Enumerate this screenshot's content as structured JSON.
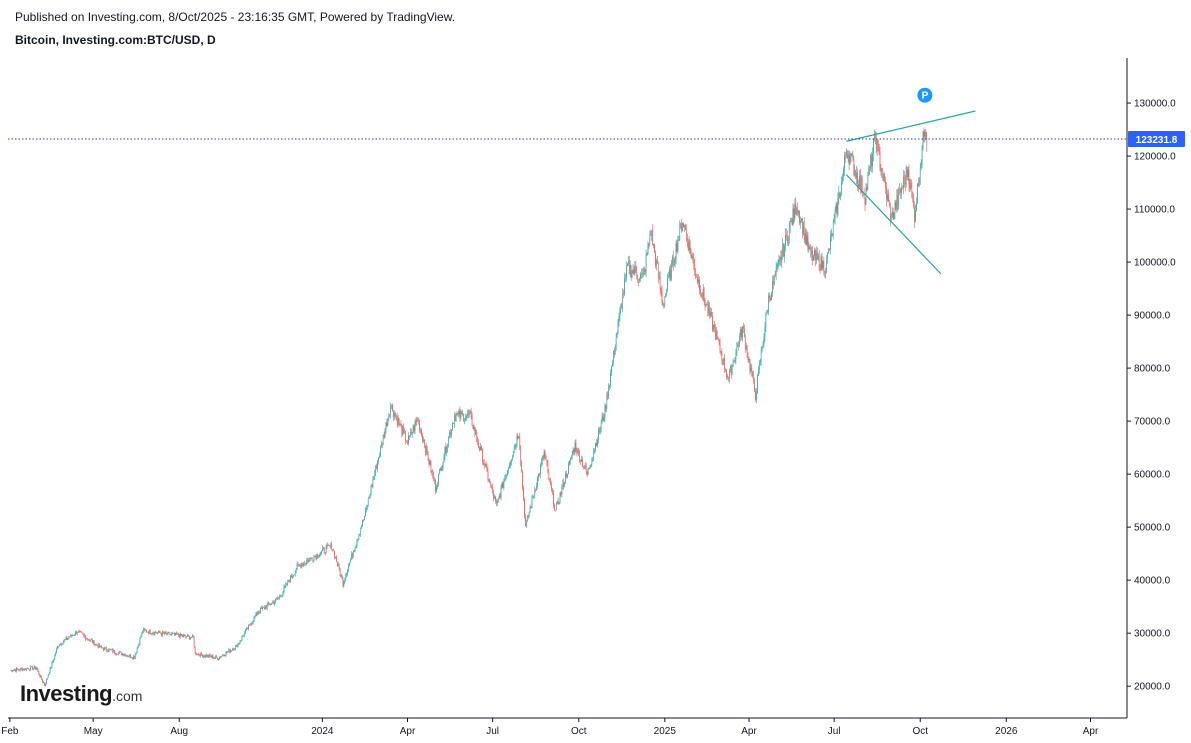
{
  "header": {
    "published": "Published on Investing.com, 8/Oct/2025 - 23:16:35 GMT, Powered by TradingView.",
    "symbol": "Bitcoin, Investing.com:BTC/USD, D"
  },
  "logo": {
    "main": "Investing",
    "suffix": ".com"
  },
  "colors": {
    "up": "#26a69a",
    "down": "#ef5350",
    "trendline": "#26a69a",
    "price_line": "#2a3f9d",
    "price_badge": "#2962ff",
    "marker": "#2196f3",
    "axis": "#131722"
  },
  "chart_data": {
    "type": "candlestick",
    "interval": "D",
    "current_price": 123231.8,
    "current_price_label": "123231.8",
    "marker_label": "P",
    "marker_date": "2025-10-06",
    "marker_price": 126200,
    "x_range": [
      "2023-01-30",
      "2026-05-10"
    ],
    "y_range": [
      14000,
      138500
    ],
    "y_ticks": [
      {
        "value": 20000,
        "label": "20000.0"
      },
      {
        "value": 30000,
        "label": "30000.0"
      },
      {
        "value": 40000,
        "label": "40000.0"
      },
      {
        "value": 50000,
        "label": "50000.0"
      },
      {
        "value": 60000,
        "label": "60000.0"
      },
      {
        "value": 70000,
        "label": "70000.0"
      },
      {
        "value": 80000,
        "label": "80000.0"
      },
      {
        "value": 90000,
        "label": "90000.0"
      },
      {
        "value": 100000,
        "label": "100000.0"
      },
      {
        "value": 110000,
        "label": "110000.0"
      },
      {
        "value": 120000,
        "label": "120000.0"
      },
      {
        "value": 130000,
        "label": "130000.0"
      }
    ],
    "x_ticks": [
      {
        "date": "2023-02-01",
        "label": "Feb"
      },
      {
        "date": "2023-05-01",
        "label": "May"
      },
      {
        "date": "2023-08-01",
        "label": "Aug"
      },
      {
        "date": "2024-01-01",
        "label": "2024"
      },
      {
        "date": "2024-04-01",
        "label": "Apr"
      },
      {
        "date": "2024-07-01",
        "label": "Jul"
      },
      {
        "date": "2024-10-01",
        "label": "Oct"
      },
      {
        "date": "2025-01-01",
        "label": "2025"
      },
      {
        "date": "2025-04-01",
        "label": "Apr"
      },
      {
        "date": "2025-07-01",
        "label": "Jul"
      },
      {
        "date": "2025-10-01",
        "label": "Oct"
      },
      {
        "date": "2026-01-01",
        "label": "2026"
      },
      {
        "date": "2026-04-01",
        "label": "Apr"
      }
    ],
    "price_path": [
      [
        "2023-02-01",
        23000
      ],
      [
        "2023-03-01",
        23500
      ],
      [
        "2023-03-10",
        20200
      ],
      [
        "2023-03-25",
        27800
      ],
      [
        "2023-04-14",
        30300
      ],
      [
        "2023-05-10",
        27200
      ],
      [
        "2023-06-14",
        25500
      ],
      [
        "2023-06-23",
        30500
      ],
      [
        "2023-07-20",
        29800
      ],
      [
        "2023-08-16",
        29200
      ],
      [
        "2023-08-18",
        26200
      ],
      [
        "2023-09-11",
        25300
      ],
      [
        "2023-10-01",
        27500
      ],
      [
        "2023-10-24",
        34000
      ],
      [
        "2023-11-15",
        36500
      ],
      [
        "2023-12-05",
        42500
      ],
      [
        "2024-01-11",
        46500
      ],
      [
        "2024-01-23",
        39500
      ],
      [
        "2024-02-15",
        52000
      ],
      [
        "2024-03-14",
        73000
      ],
      [
        "2024-04-01",
        66000
      ],
      [
        "2024-04-12",
        70500
      ],
      [
        "2024-05-01",
        57500
      ],
      [
        "2024-05-21",
        71000
      ],
      [
        "2024-06-07",
        71000
      ],
      [
        "2024-07-05",
        54000
      ],
      [
        "2024-07-29",
        68000
      ],
      [
        "2024-08-05",
        50000
      ],
      [
        "2024-08-25",
        64000
      ],
      [
        "2024-09-06",
        53000
      ],
      [
        "2024-09-27",
        65500
      ],
      [
        "2024-10-10",
        60000
      ],
      [
        "2024-10-29",
        72000
      ],
      [
        "2024-11-12",
        88000
      ],
      [
        "2024-11-22",
        99000
      ],
      [
        "2024-12-09",
        97000
      ],
      [
        "2024-12-17",
        106000
      ],
      [
        "2024-12-30",
        92000
      ],
      [
        "2025-01-20",
        108000
      ],
      [
        "2025-02-03",
        98000
      ],
      [
        "2025-02-25",
        86000
      ],
      [
        "2025-03-10",
        78000
      ],
      [
        "2025-03-25",
        87500
      ],
      [
        "2025-04-08",
        75000
      ],
      [
        "2025-04-22",
        93000
      ],
      [
        "2025-05-22",
        111000
      ],
      [
        "2025-06-05",
        101500
      ],
      [
        "2025-06-22",
        99000
      ],
      [
        "2025-07-10",
        116000
      ],
      [
        "2025-07-14",
        121500
      ],
      [
        "2025-08-03",
        112500
      ],
      [
        "2025-08-14",
        123500
      ],
      [
        "2025-08-31",
        108200
      ],
      [
        "2025-09-18",
        117500
      ],
      [
        "2025-09-25",
        109000
      ],
      [
        "2025-10-06",
        126000
      ],
      [
        "2025-10-08",
        123231.8
      ]
    ],
    "trendlines": [
      {
        "name": "upper-trendline",
        "points": [
          [
            "2025-07-14",
            122800
          ],
          [
            "2025-11-29",
            128500
          ]
        ]
      },
      {
        "name": "lower-trendline",
        "points": [
          [
            "2025-07-14",
            116500
          ],
          [
            "2025-10-23",
            97800
          ]
        ]
      }
    ]
  }
}
